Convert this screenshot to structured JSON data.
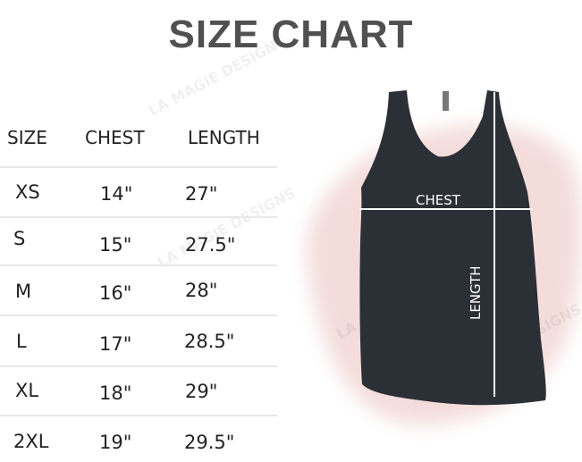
{
  "title": "SIZE CHART",
  "table": {
    "headers": [
      "SIZE",
      "CHEST",
      "LENGTH"
    ],
    "rows": [
      {
        "size": "XS",
        "chest": "14\"",
        "length": "27\""
      },
      {
        "size": "S",
        "chest": "15\"",
        "length": "27.5\""
      },
      {
        "size": "M",
        "chest": "16\"",
        "length": "28\""
      },
      {
        "size": "L",
        "chest": "17\"",
        "length": "28.5\""
      },
      {
        "size": "XL",
        "chest": "18\"",
        "length": "29\""
      },
      {
        "size": "2XL",
        "chest": "19\"",
        "length": "29.5\""
      }
    ]
  },
  "diagram": {
    "chest_label": "CHEST",
    "length_label": "LENGTH",
    "garment_color": "#2b2f36",
    "blob_color": "#f3d9d8"
  },
  "watermark": "LA MAGIE DESIGNS"
}
